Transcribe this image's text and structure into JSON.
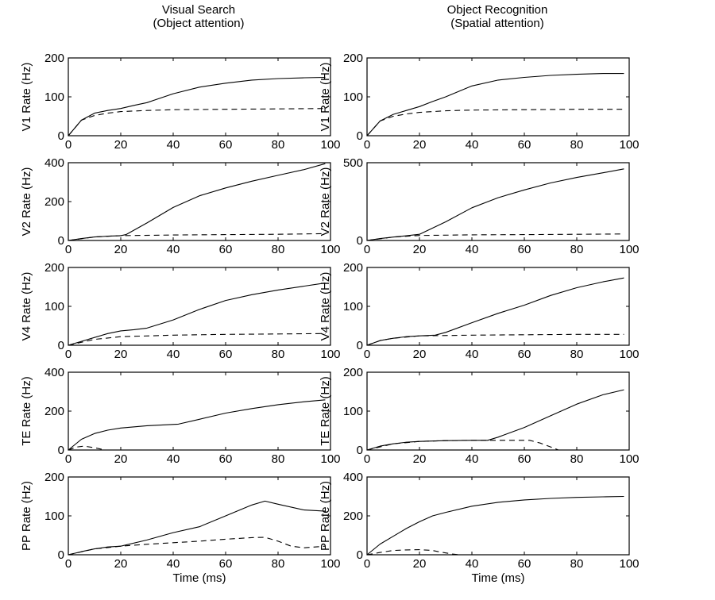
{
  "columns": [
    {
      "title": "Visual Search",
      "subtitle": "(Object attention)"
    },
    {
      "title": "Object Recognition",
      "subtitle": "(Spatial attention)"
    }
  ],
  "chart_data": [
    {
      "type": "line",
      "column": 0,
      "row": 0,
      "ylabel": "V1 Rate (Hz)",
      "xlabel": "",
      "xlim": [
        0,
        100
      ],
      "ylim": [
        0,
        200
      ],
      "xticks": [
        0,
        20,
        40,
        60,
        80,
        100
      ],
      "yticks": [
        0,
        100,
        200
      ],
      "series": [
        {
          "style": "solid",
          "x": [
            0,
            5,
            10,
            15,
            20,
            25,
            30,
            40,
            50,
            60,
            70,
            80,
            90,
            98
          ],
          "y": [
            0,
            40,
            58,
            65,
            70,
            78,
            85,
            108,
            125,
            135,
            143,
            147,
            149,
            150
          ]
        },
        {
          "style": "dashed",
          "x": [
            0,
            5,
            10,
            15,
            20,
            30,
            40,
            60,
            80,
            98
          ],
          "y": [
            0,
            40,
            52,
            58,
            62,
            65,
            67,
            68,
            69,
            70
          ]
        }
      ]
    },
    {
      "type": "line",
      "column": 0,
      "row": 1,
      "ylabel": "V2 Rate (Hz)",
      "xlabel": "",
      "xlim": [
        0,
        100
      ],
      "ylim": [
        0,
        400
      ],
      "xticks": [
        0,
        20,
        40,
        60,
        80,
        100
      ],
      "yticks": [
        0,
        200,
        400
      ],
      "series": [
        {
          "style": "solid",
          "x": [
            0,
            5,
            10,
            15,
            20,
            22,
            30,
            40,
            50,
            60,
            70,
            80,
            90,
            98
          ],
          "y": [
            0,
            10,
            18,
            22,
            25,
            30,
            90,
            170,
            230,
            270,
            305,
            335,
            365,
            395
          ]
        },
        {
          "style": "dashed",
          "x": [
            0,
            10,
            20,
            40,
            60,
            80,
            98
          ],
          "y": [
            0,
            18,
            25,
            28,
            30,
            32,
            35
          ]
        }
      ]
    },
    {
      "type": "line",
      "column": 0,
      "row": 2,
      "ylabel": "V4 Rate (Hz)",
      "xlabel": "",
      "xlim": [
        0,
        100
      ],
      "ylim": [
        0,
        200
      ],
      "xticks": [
        0,
        20,
        40,
        60,
        80,
        100
      ],
      "yticks": [
        0,
        100,
        200
      ],
      "series": [
        {
          "style": "solid",
          "x": [
            0,
            5,
            10,
            15,
            20,
            25,
            30,
            40,
            50,
            60,
            70,
            80,
            90,
            98
          ],
          "y": [
            0,
            10,
            20,
            30,
            37,
            40,
            44,
            65,
            92,
            115,
            130,
            142,
            152,
            160
          ]
        },
        {
          "style": "dashed",
          "x": [
            0,
            10,
            20,
            40,
            60,
            80,
            98
          ],
          "y": [
            0,
            15,
            22,
            26,
            28,
            29,
            30
          ]
        }
      ]
    },
    {
      "type": "line",
      "column": 0,
      "row": 3,
      "ylabel": "TE Rate (Hz)",
      "xlabel": "",
      "xlim": [
        0,
        100
      ],
      "ylim": [
        0,
        400
      ],
      "xticks": [
        0,
        20,
        40,
        60,
        80,
        100
      ],
      "yticks": [
        0,
        200,
        400
      ],
      "series": [
        {
          "style": "solid",
          "x": [
            0,
            5,
            10,
            15,
            20,
            30,
            42,
            50,
            60,
            70,
            80,
            90,
            98
          ],
          "y": [
            0,
            55,
            85,
            102,
            113,
            125,
            133,
            158,
            190,
            213,
            233,
            248,
            258
          ]
        },
        {
          "style": "dashed",
          "x": [
            0,
            3,
            6,
            10,
            14
          ],
          "y": [
            0,
            15,
            20,
            12,
            0
          ]
        }
      ]
    },
    {
      "type": "line",
      "column": 0,
      "row": 4,
      "ylabel": "PP Rate (Hz)",
      "xlabel": "Time (ms)",
      "xlim": [
        0,
        100
      ],
      "ylim": [
        0,
        200
      ],
      "xticks": [
        0,
        20,
        40,
        60,
        80,
        100
      ],
      "yticks": [
        0,
        100,
        200
      ],
      "series": [
        {
          "style": "solid",
          "x": [
            0,
            5,
            10,
            15,
            20,
            30,
            40,
            50,
            60,
            70,
            75,
            80,
            90,
            98
          ],
          "y": [
            0,
            8,
            15,
            20,
            22,
            38,
            57,
            72,
            100,
            128,
            138,
            130,
            115,
            112
          ]
        },
        {
          "style": "dashed",
          "x": [
            0,
            10,
            20,
            30,
            40,
            50,
            60,
            70,
            75,
            80,
            85,
            90,
            98
          ],
          "y": [
            0,
            15,
            22,
            27,
            31,
            35,
            40,
            44,
            45,
            35,
            22,
            18,
            22
          ]
        }
      ]
    },
    {
      "type": "line",
      "column": 1,
      "row": 0,
      "ylabel": "V1 Rate (Hz)",
      "xlabel": "",
      "xlim": [
        0,
        100
      ],
      "ylim": [
        0,
        200
      ],
      "xticks": [
        0,
        20,
        40,
        60,
        80,
        100
      ],
      "yticks": [
        0,
        100,
        200
      ],
      "series": [
        {
          "style": "solid",
          "x": [
            0,
            5,
            10,
            15,
            20,
            25,
            30,
            40,
            50,
            60,
            70,
            80,
            90,
            98
          ],
          "y": [
            0,
            38,
            55,
            65,
            75,
            88,
            100,
            128,
            143,
            150,
            155,
            158,
            160,
            160
          ]
        },
        {
          "style": "dashed",
          "x": [
            0,
            5,
            10,
            15,
            20,
            30,
            40,
            60,
            80,
            98
          ],
          "y": [
            0,
            38,
            50,
            56,
            60,
            64,
            66,
            67,
            68,
            68
          ]
        }
      ]
    },
    {
      "type": "line",
      "column": 1,
      "row": 1,
      "ylabel": "V2 Rate (Hz)",
      "xlabel": "",
      "xlim": [
        0,
        100
      ],
      "ylim": [
        0,
        500
      ],
      "xticks": [
        0,
        20,
        40,
        60,
        80,
        100
      ],
      "yticks": [
        0,
        500
      ],
      "series": [
        {
          "style": "solid",
          "x": [
            0,
            5,
            10,
            15,
            20,
            30,
            40,
            50,
            60,
            70,
            80,
            90,
            98
          ],
          "y": [
            0,
            12,
            22,
            30,
            40,
            120,
            210,
            275,
            325,
            370,
            405,
            435,
            460
          ]
        },
        {
          "style": "dashed",
          "x": [
            0,
            10,
            20,
            40,
            60,
            80,
            98
          ],
          "y": [
            0,
            22,
            32,
            36,
            38,
            40,
            42
          ]
        }
      ]
    },
    {
      "type": "line",
      "column": 1,
      "row": 2,
      "ylabel": "V4 Rate (Hz)",
      "xlabel": "",
      "xlim": [
        0,
        100
      ],
      "ylim": [
        0,
        200
      ],
      "xticks": [
        0,
        20,
        40,
        60,
        80,
        100
      ],
      "yticks": [
        0,
        100,
        200
      ],
      "series": [
        {
          "style": "solid",
          "x": [
            0,
            5,
            10,
            15,
            20,
            26,
            30,
            40,
            50,
            60,
            70,
            80,
            90,
            98
          ],
          "y": [
            0,
            12,
            18,
            22,
            24,
            26,
            33,
            58,
            82,
            103,
            128,
            148,
            163,
            173
          ]
        },
        {
          "style": "dashed",
          "x": [
            0,
            5,
            10,
            20,
            40,
            60,
            80,
            98
          ],
          "y": [
            0,
            12,
            18,
            24,
            26,
            27,
            28,
            28
          ]
        }
      ]
    },
    {
      "type": "line",
      "column": 1,
      "row": 3,
      "ylabel": "TE Rate (Hz)",
      "xlabel": "",
      "xlim": [
        0,
        100
      ],
      "ylim": [
        0,
        200
      ],
      "xticks": [
        0,
        20,
        40,
        60,
        80,
        100
      ],
      "yticks": [
        0,
        100,
        200
      ],
      "series": [
        {
          "style": "solid",
          "x": [
            0,
            5,
            10,
            15,
            20,
            30,
            40,
            46,
            50,
            60,
            70,
            80,
            90,
            98
          ],
          "y": [
            0,
            10,
            16,
            20,
            22,
            24,
            25,
            25,
            33,
            58,
            88,
            118,
            142,
            155
          ]
        },
        {
          "style": "dashed",
          "x": [
            0,
            10,
            20,
            30,
            40,
            46,
            55,
            62,
            66,
            70,
            73
          ],
          "y": [
            0,
            16,
            22,
            24,
            25,
            25,
            25,
            25,
            18,
            8,
            0
          ]
        }
      ]
    },
    {
      "type": "line",
      "column": 1,
      "row": 4,
      "ylabel": "PP Rate (Hz)",
      "xlabel": "Time (ms)",
      "xlim": [
        0,
        100
      ],
      "ylim": [
        0,
        400
      ],
      "xticks": [
        0,
        20,
        40,
        60,
        80,
        100
      ],
      "yticks": [
        0,
        200,
        400
      ],
      "series": [
        {
          "style": "solid",
          "x": [
            0,
            5,
            10,
            15,
            20,
            25,
            30,
            40,
            50,
            60,
            70,
            80,
            90,
            98
          ],
          "y": [
            0,
            55,
            95,
            135,
            170,
            200,
            218,
            250,
            270,
            282,
            290,
            295,
            298,
            300
          ]
        },
        {
          "style": "dashed",
          "x": [
            0,
            5,
            10,
            15,
            20,
            25,
            28,
            32,
            35
          ],
          "y": [
            0,
            12,
            22,
            25,
            26,
            22,
            14,
            5,
            0
          ]
        }
      ]
    }
  ]
}
